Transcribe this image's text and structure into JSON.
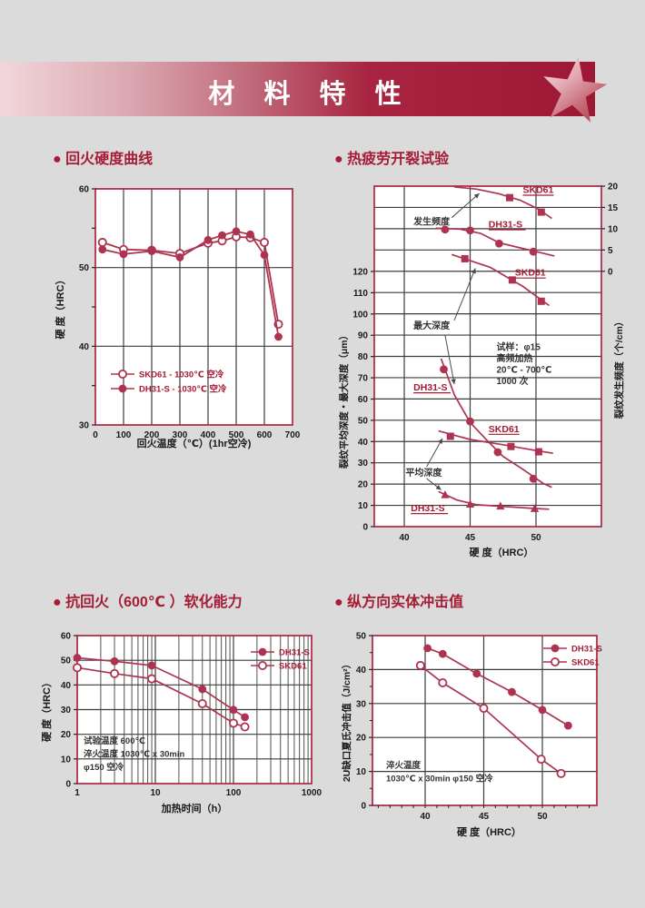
{
  "page": {
    "background": "#dbdbdc"
  },
  "banner": {
    "title": "材 料 特 性",
    "icon": "star-icon",
    "gradient_left": "#f1d7db",
    "gradient_right": "#9d1834",
    "text_color": "#ffffff"
  },
  "theme": {
    "accent": "#a51c35",
    "line_color": "#ae3350",
    "frame_color": "#ab2540",
    "grid_color": "#3d3d3d",
    "plot_bg": "#ffffff",
    "text_color": "#1a1a1a",
    "annotation_color": "#333333"
  },
  "sections": [
    {
      "title": "● 回火硬度曲线"
    },
    {
      "title": "● 热疲劳开裂试验"
    },
    {
      "title": "● 抗回火（600℃ ）软化能力"
    },
    {
      "title": "● 纵方向实体冲击值"
    }
  ],
  "chart_data": [
    {
      "id": "tempering_hardness_curve",
      "type": "line",
      "title": "回火硬度曲线",
      "xlabel": "回火温度（℃）(1hr空冷)",
      "ylabel": "硬 度（HRC）",
      "xlim": [
        0,
        700
      ],
      "ylim": [
        30,
        60
      ],
      "xticks": [
        0,
        100,
        200,
        300,
        400,
        500,
        600,
        700
      ],
      "yticks": [
        30,
        40,
        50,
        60
      ],
      "yticks_minor": [
        35,
        45,
        55
      ],
      "grid_x": [
        100,
        200,
        300,
        400,
        500,
        600
      ],
      "grid_y": [
        40,
        50
      ],
      "x": [
        25,
        100,
        200,
        300,
        400,
        450,
        500,
        550,
        600,
        650
      ],
      "series": [
        {
          "name": "SKD61",
          "legend": "SKD61  - 1030℃ 空冷",
          "marker": "circle-open",
          "values": [
            53.2,
            52.3,
            52.2,
            51.8,
            53.1,
            53.4,
            53.9,
            53.8,
            53.2,
            42.8
          ]
        },
        {
          "name": "DH31-S",
          "legend": "DH31-S - 1030℃ 空冷",
          "marker": "circle",
          "values": [
            52.3,
            51.7,
            52.1,
            51.3,
            53.5,
            54.1,
            54.6,
            54.2,
            51.6,
            41.2
          ]
        }
      ]
    },
    {
      "id": "thermal_fatigue_cracking_test",
      "type": "scatter",
      "title": "热疲劳开裂试验",
      "xlabel": "硬  度（HRC）",
      "ylabel_left": "裂纹平均深度・最大深度（μm）",
      "ylabel_right": "裂纹发生频度（个/cm）",
      "xlim": [
        37.7,
        55.1
      ],
      "xticks": [
        40,
        45,
        50
      ],
      "left_axis": {
        "min": 0,
        "max": 120,
        "ticks": [
          0,
          10,
          20,
          30,
          40,
          50,
          60,
          70,
          80,
          90,
          100,
          110,
          120
        ]
      },
      "right_axis": {
        "min": 0,
        "max": 20,
        "ticks": [
          0,
          5,
          10,
          15,
          20
        ]
      },
      "grid_x": [
        40,
        45,
        50
      ],
      "test_conditions": [
        "试样：φ15",
        "高频加热",
        "20℃ - 700℃",
        "1000 次"
      ],
      "test_conditions_pos": {
        "axis": "left",
        "x": 47.0,
        "y": 83
      },
      "series": [
        {
          "group": "发生频度",
          "name": "SKD61",
          "axis": "right",
          "marker": "square",
          "markers": [
            [
              48,
              17.3
            ],
            [
              50.4,
              13.9
            ]
          ],
          "curve": [
            [
              43.8,
              19.8
            ],
            [
              45.5,
              19.3
            ],
            [
              47.2,
              18.2
            ],
            [
              48.8,
              16.7
            ],
            [
              50.2,
              14.6
            ],
            [
              51.2,
              12.4
            ]
          ],
          "label": {
            "x": 49.0,
            "y": 18.4
          }
        },
        {
          "group": "发生频度",
          "name": "DH31-S",
          "axis": "right",
          "marker": "circle",
          "markers": [
            [
              43.1,
              9.8
            ],
            [
              45,
              9.6
            ],
            [
              47.2,
              6.5
            ],
            [
              49.8,
              4.6
            ]
          ],
          "curve": [
            [
              42.4,
              10.1
            ],
            [
              44.2,
              9.9
            ],
            [
              45.8,
              8.9
            ],
            [
              47.2,
              6.7
            ],
            [
              48.8,
              5.5
            ],
            [
              50.3,
              4.4
            ],
            [
              51.4,
              3.6
            ]
          ],
          "label": {
            "x": 46.4,
            "y": 10.3
          }
        },
        {
          "group": "最大深度",
          "name": "SKD61",
          "axis": "left",
          "marker": "square",
          "markers": [
            [
              44.6,
              126
            ],
            [
              48.2,
              116
            ],
            [
              50.4,
              106
            ]
          ],
          "curve": [
            [
              43.6,
              128
            ],
            [
              46.5,
              122
            ],
            [
              49,
              113
            ],
            [
              51,
              104
            ]
          ],
          "label": {
            "x": 48.4,
            "y": 118
          }
        },
        {
          "group": "最大深度",
          "name": "DH31-S",
          "axis": "left",
          "marker": "circle",
          "markers": [
            [
              43,
              74
            ],
            [
              45,
              49.5
            ],
            [
              47.1,
              35
            ],
            [
              49.8,
              22.5
            ]
          ],
          "curve": [
            [
              42.8,
              79
            ],
            [
              43.8,
              62
            ],
            [
              45,
              49
            ],
            [
              46.3,
              40.5
            ],
            [
              47.5,
              33
            ],
            [
              49,
              27
            ],
            [
              50.5,
              20.5
            ],
            [
              51.2,
              18.5
            ]
          ],
          "label": {
            "x": 40.7,
            "y": 64
          }
        },
        {
          "group": "平均深度",
          "name": "SKD61",
          "axis": "left",
          "marker": "square",
          "markers": [
            [
              43.5,
              42.5
            ],
            [
              48.1,
              37.7
            ],
            [
              50.2,
              35.2
            ]
          ],
          "curve": [
            [
              42.6,
              45
            ],
            [
              45,
              41
            ],
            [
              47.5,
              38.5
            ],
            [
              50,
              35.8
            ],
            [
              51.3,
              34.5
            ]
          ],
          "label": {
            "x": 46.4,
            "y": 44.5
          }
        },
        {
          "group": "平均深度",
          "name": "DH31-S",
          "axis": "left",
          "marker": "triangle",
          "markers": [
            [
              43.1,
              15
            ],
            [
              45,
              10.6
            ],
            [
              47.3,
              9.7
            ],
            [
              49.9,
              8.5
            ]
          ],
          "curve": [
            [
              42.6,
              16.5
            ],
            [
              44,
              12.5
            ],
            [
              45.5,
              10.3
            ],
            [
              47.5,
              9.5
            ],
            [
              49.5,
              8.7
            ],
            [
              51,
              8.2
            ]
          ],
          "label": {
            "x": 40.5,
            "y": 7.2
          }
        }
      ],
      "annotations": [
        {
          "text": "发生频度",
          "axis": "right",
          "x": 40.7,
          "y": 10.9,
          "arrows": [
            {
              "fx": 43.6,
              "fy": 12.6,
              "tx": 45.7,
              "ty": 18.3
            }
          ]
        },
        {
          "text": "最大深度",
          "axis": "left",
          "x": 40.7,
          "y": 93,
          "arrows": [
            {
              "fx": 43.8,
              "fy": 97,
              "tx": 45.4,
              "ty": 121.5
            },
            {
              "fx": 43.1,
              "fy": 90,
              "tx": 43.8,
              "ty": 67
            }
          ]
        },
        {
          "text": "平均深度",
          "axis": "left",
          "x": 40.1,
          "y": 24,
          "arrows": [
            {
              "fx": 41.7,
              "fy": 28.2,
              "tx": 42.9,
              "ty": 41.5
            },
            {
              "fx": 41.7,
              "fy": 22.6,
              "tx": 42.8,
              "ty": 17.3
            }
          ]
        }
      ]
    },
    {
      "id": "temper_softening_600c",
      "type": "line",
      "title": "抗回火（600℃ ）软化能力",
      "xlabel": "加热时间（h）",
      "ylabel": "硬 度（HRC）",
      "xscale": "log",
      "xlim": [
        1,
        1000
      ],
      "ylim": [
        0,
        60
      ],
      "xticks": [
        1,
        10,
        100,
        1000
      ],
      "yticks": [
        0,
        10,
        20,
        30,
        40,
        50,
        60
      ],
      "series": [
        {
          "name": "DH31-S",
          "marker": "circle",
          "points": [
            [
              1,
              51
            ],
            [
              3,
              49.6
            ],
            [
              9,
              47.9
            ],
            [
              40,
              38.3
            ],
            [
              100,
              29.9
            ],
            [
              140,
              26.9
            ]
          ]
        },
        {
          "name": "SKD61",
          "marker": "circle-open",
          "points": [
            [
              1,
              47
            ],
            [
              3,
              44.6
            ],
            [
              9,
              42.5
            ],
            [
              40,
              32.4
            ],
            [
              100,
              24.5
            ],
            [
              140,
              23
            ]
          ]
        }
      ],
      "test_conditions": [
        "试验温度 600℃",
        "淬火温度 1030℃ x 30min",
        "φ150 空冷"
      ]
    },
    {
      "id": "longitudinal_solid_impact_value",
      "type": "line",
      "title": "纵方向实体冲击值",
      "xlabel": "硬  度（HRC）",
      "ylabel": "2U缺口夏氏冲击值（J/cm²）",
      "xlim": [
        35.5,
        54.7
      ],
      "ylim": [
        0,
        50
      ],
      "xticks": [
        40,
        45,
        50
      ],
      "yticks": [
        0,
        10,
        20,
        30,
        40,
        50
      ],
      "yticks_minor": [
        5,
        15,
        25,
        35,
        45
      ],
      "series": [
        {
          "name": "DH31-S",
          "marker": "circle",
          "points": [
            [
              40.2,
              46.3
            ],
            [
              41.5,
              44.6
            ],
            [
              44.4,
              38.8
            ],
            [
              47.4,
              33.4
            ],
            [
              50,
              28.1
            ],
            [
              52.2,
              23.5
            ]
          ]
        },
        {
          "name": "SKD61",
          "marker": "circle-open",
          "points": [
            [
              39.6,
              41.2
            ],
            [
              41.5,
              36.1
            ],
            [
              45,
              28.6
            ],
            [
              49.9,
              13.6
            ],
            [
              51.6,
              9.4
            ]
          ]
        }
      ],
      "test_conditions": [
        "淬火温度",
        "1030℃ x 30min φ150 空冷"
      ]
    }
  ]
}
